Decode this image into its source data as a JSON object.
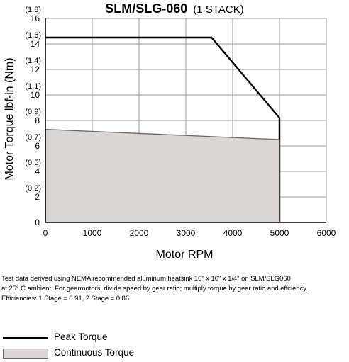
{
  "chart_data": {
    "type": "line",
    "title": "SLM/SLG-060",
    "subtitle": "(1 STACK)",
    "xlabel": "Motor RPM",
    "ylabel": "Motor Torque lbf-in (Nm)",
    "xlim": [
      0,
      6000
    ],
    "ylim": [
      0,
      16
    ],
    "xticks": [
      "0",
      "1000",
      "2000",
      "3000",
      "4000",
      "5000",
      "6000"
    ],
    "yticks": [
      {
        "value": 0,
        "primary": "0",
        "secondary": ""
      },
      {
        "value": 2,
        "primary": "2",
        "secondary": "(0.2)"
      },
      {
        "value": 4,
        "primary": "4",
        "secondary": "(0.5)"
      },
      {
        "value": 6,
        "primary": "6",
        "secondary": "(0.7)"
      },
      {
        "value": 8,
        "primary": "8",
        "secondary": "(0.9)"
      },
      {
        "value": 10,
        "primary": "10",
        "secondary": "(1.1)"
      },
      {
        "value": 12,
        "primary": "12",
        "secondary": "(1.4)"
      },
      {
        "value": 14,
        "primary": "14",
        "secondary": "(1.6)"
      },
      {
        "value": 16,
        "primary": "16",
        "secondary": "(1.8)"
      }
    ],
    "grid": true,
    "series": [
      {
        "name": "Peak Torque",
        "style": "line",
        "color": "#000000",
        "x": [
          0,
          3550,
          5000,
          5000
        ],
        "y": [
          14.5,
          14.5,
          8.2,
          0
        ]
      },
      {
        "name": "Continuous Torque",
        "style": "area",
        "color": "#dcd6d2",
        "edge": "#666666",
        "x": [
          0,
          5000
        ],
        "y": [
          7.3,
          6.5
        ]
      }
    ]
  },
  "note": [
    "Test data derived using NEMA recommended aluminum heatsink 10\" x 10\" x 1/4\" on SLM/SLG060",
    "at 25° C ambient. For gearmotors, divide speed by gear ratio; multiply torque by gear ratio and effciency.",
    "Efficiencies: 1 Stage = 0.91, 2 Stage = 0.86"
  ],
  "legend": {
    "peak_label": "Peak Torque",
    "continuous_label": "Continuous Torque"
  }
}
